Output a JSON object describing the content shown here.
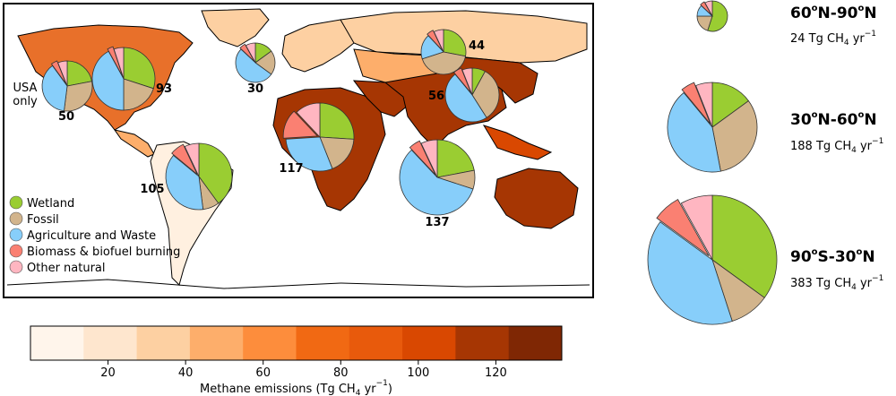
{
  "colors": {
    "wetland": "#9acd32",
    "fossil": "#d2b48c",
    "agriculture": "#87cefa",
    "biomass": "#fa8072",
    "other": "#ffb6c1",
    "ocean": "#ffffff",
    "outline": "#000000",
    "colorbar": [
      "#fff5eb",
      "#fee6ce",
      "#fdd0a2",
      "#fdae6b",
      "#fd8d3c",
      "#f16913",
      "#e85a0c",
      "#d94801",
      "#a63603",
      "#7f2704"
    ]
  },
  "legend": {
    "items": [
      {
        "label": "Wetland",
        "color_key": "wetland"
      },
      {
        "label": "Fossil",
        "color_key": "fossil"
      },
      {
        "label": "Agriculture and Waste",
        "color_key": "agriculture"
      },
      {
        "label": "Biomass & biofuel burning",
        "color_key": "biomass"
      },
      {
        "label": "Other natural",
        "color_key": "other"
      }
    ]
  },
  "colorbar": {
    "min": 0,
    "max": 137,
    "ticks": [
      20,
      40,
      60,
      80,
      100,
      120
    ],
    "tick_labels": [
      "20",
      "40",
      "60",
      "80",
      "100",
      "120"
    ],
    "label_prefix": "Methane emissions (Tg CH",
    "label_sub": "4",
    "label_mid": " yr",
    "label_sup": "−1",
    "label_suffix": ")"
  },
  "map": {
    "region_pies": [
      {
        "id": "usa",
        "label": "50",
        "side_label": "USA\nonly",
        "value": 50,
        "shares": [
          0.22,
          0.3,
          0.38,
          0.04,
          0.06
        ]
      },
      {
        "id": "boreal-na",
        "label": "93",
        "value": 93,
        "shares": [
          0.3,
          0.2,
          0.42,
          0.03,
          0.05
        ]
      },
      {
        "id": "europe",
        "label": "30",
        "value": 30,
        "shares": [
          0.15,
          0.2,
          0.52,
          0.05,
          0.08
        ]
      },
      {
        "id": "russia",
        "label": "44",
        "value": 44,
        "shares": [
          0.28,
          0.42,
          0.18,
          0.05,
          0.07
        ]
      },
      {
        "id": "china",
        "label": "56",
        "value": 56,
        "shares": [
          0.08,
          0.33,
          0.48,
          0.05,
          0.06
        ]
      },
      {
        "id": "south-america",
        "label": "105",
        "value": 105,
        "shares": [
          0.4,
          0.08,
          0.38,
          0.07,
          0.07
        ]
      },
      {
        "id": "africa",
        "label": "117",
        "value": 117,
        "shares": [
          0.26,
          0.18,
          0.3,
          0.14,
          0.12
        ]
      },
      {
        "id": "south-asia",
        "label": "137",
        "value": 137,
        "shares": [
          0.22,
          0.08,
          0.58,
          0.05,
          0.07
        ]
      }
    ]
  },
  "latitude_summary": [
    {
      "id": "60-90",
      "band_prefix": "60",
      "band_mid": "N-90",
      "band_suffix": "N",
      "emission": "24 Tg CH",
      "value": 24,
      "shares": [
        0.55,
        0.2,
        0.12,
        0.05,
        0.08
      ]
    },
    {
      "id": "30-60",
      "band_prefix": "30",
      "band_mid": "N-60",
      "band_suffix": "N",
      "emission": "188 Tg CH",
      "value": 188,
      "shares": [
        0.15,
        0.32,
        0.42,
        0.05,
        0.06
      ]
    },
    {
      "id": "90s-30",
      "band_prefix": "90",
      "band_mid": "S-30",
      "band_suffix": "N",
      "emission": "383 Tg CH",
      "value": 383,
      "shares": [
        0.35,
        0.1,
        0.4,
        0.07,
        0.08
      ]
    }
  ],
  "units": {
    "sub": "4",
    "yr": " yr",
    "sup": "−1",
    "deg": "o"
  }
}
